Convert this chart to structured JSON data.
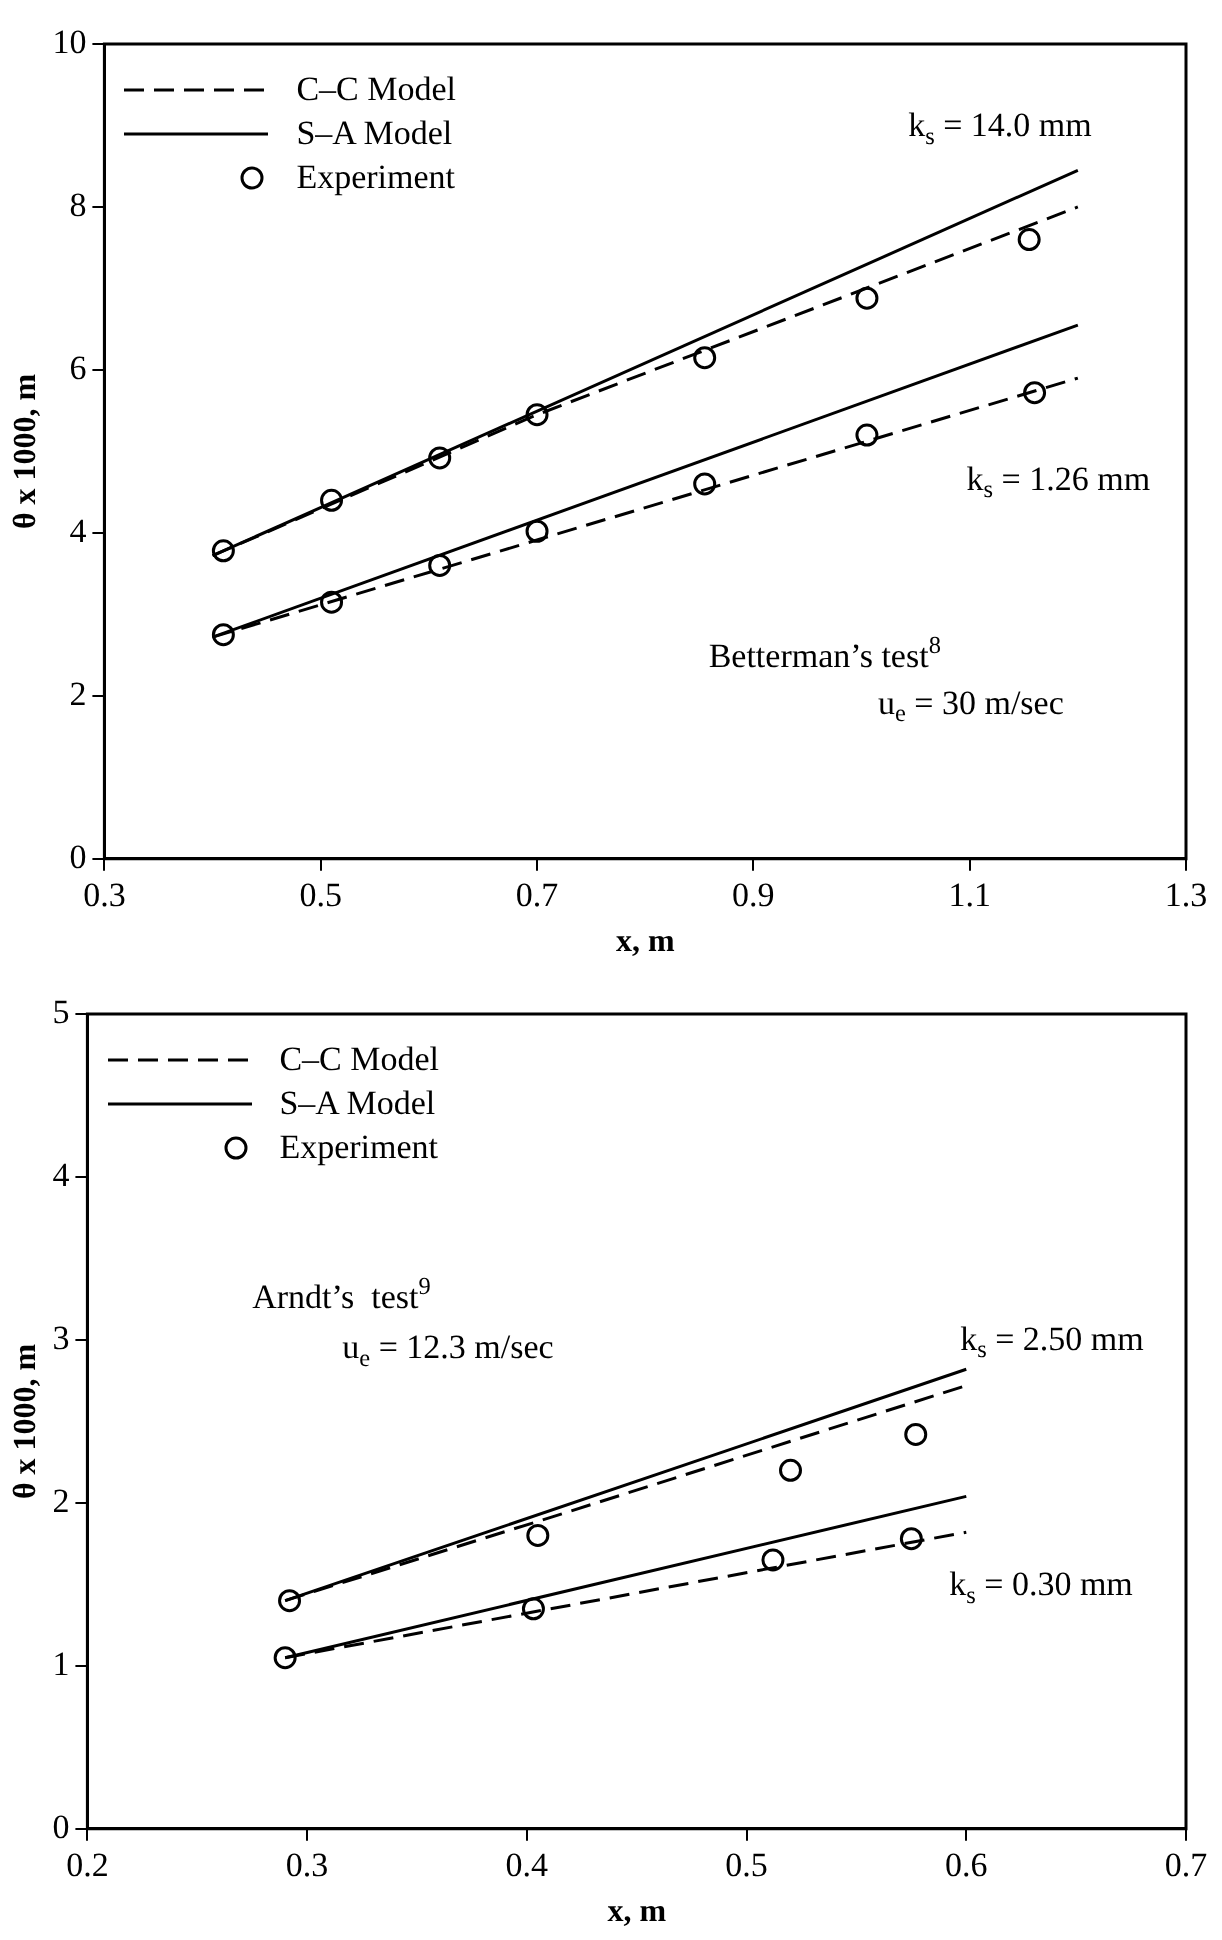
{
  "chart_data": [
    {
      "type": "line",
      "xlabel": "x, m",
      "ylabel": "θ x 1000, m",
      "xlim": [
        0.3,
        1.3
      ],
      "xticks": [
        0.3,
        0.5,
        0.7,
        0.9,
        1.1,
        1.3
      ],
      "ylim": [
        0,
        10
      ],
      "yticks": [
        0,
        2,
        4,
        6,
        8,
        10
      ],
      "legend": "top left",
      "annotations": [
        "k$_{s}$ = 14.0 mm",
        "k$_{s}$ = 1.26 mm",
        "Betterman’s test$^{8}$",
        "u$_{e}$ = 30 m/sec"
      ],
      "series": [
        {
          "name": "C–C Model",
          "type": "line",
          "line_style": "dashed",
          "marker": "none",
          "color": "#000000",
          "x": [
            0.4,
            0.7,
            1.2
          ],
          "values": [
            3.72,
            5.45,
            8.0
          ]
        },
        {
          "name": "S–A Model",
          "type": "line",
          "line_style": "solid",
          "marker": "none",
          "color": "#000000",
          "x": [
            0.4,
            1.2
          ],
          "values": [
            3.72,
            8.45
          ]
        },
        {
          "name": "Experiment",
          "type": "scatter",
          "marker": "circle",
          "color": "#000000",
          "x": [
            0.41,
            0.51,
            0.61,
            0.7,
            0.855,
            1.005,
            1.155
          ],
          "values": [
            3.78,
            4.4,
            4.92,
            5.45,
            6.15,
            6.88,
            7.6
          ]
        },
        {
          "type": "line",
          "line_style": "dashed",
          "marker": "none",
          "color": "#000000",
          "x": [
            0.4,
            1.2
          ],
          "values": [
            2.72,
            5.9
          ]
        },
        {
          "type": "line",
          "line_style": "solid",
          "marker": "none",
          "color": "#000000",
          "x": [
            0.4,
            1.2
          ],
          "values": [
            2.72,
            6.55
          ]
        },
        {
          "type": "scatter",
          "marker": "circle",
          "color": "#000000",
          "x": [
            0.41,
            0.51,
            0.61,
            0.7,
            0.855,
            1.005,
            1.16
          ],
          "values": [
            2.75,
            3.15,
            3.6,
            4.02,
            4.6,
            5.2,
            5.72
          ]
        }
      ]
    },
    {
      "type": "line",
      "xlabel": "x, m",
      "ylabel": "θ x 1000, m",
      "xlim": [
        0.2,
        0.7
      ],
      "xticks": [
        0.2,
        0.3,
        0.4,
        0.5,
        0.6,
        0.7
      ],
      "ylim": [
        0,
        5
      ],
      "yticks": [
        0,
        1,
        2,
        3,
        4,
        5
      ],
      "legend": "top left",
      "annotations": [
        "k$_{s}$ = 2.50 mm",
        "k$_{s}$ = 0.30 mm",
        "Arndt’s  test$^{9}$",
        "u$_{e}$ = 12.3 m/sec"
      ],
      "series": [
        {
          "name": "C–C Model",
          "type": "line",
          "line_style": "dashed",
          "marker": "none",
          "color": "#000000",
          "x": [
            0.29,
            0.42,
            0.6
          ],
          "values": [
            1.4,
            1.95,
            2.72
          ]
        },
        {
          "name": "S–A Model",
          "type": "line",
          "line_style": "solid",
          "marker": "none",
          "color": "#000000",
          "x": [
            0.29,
            0.6
          ],
          "values": [
            1.4,
            2.82
          ]
        },
        {
          "name": "Experiment",
          "type": "scatter",
          "marker": "circle",
          "color": "#000000",
          "x": [
            0.292,
            0.405,
            0.52,
            0.577
          ],
          "values": [
            1.4,
            1.8,
            2.2,
            2.42
          ]
        },
        {
          "type": "line",
          "line_style": "dashed",
          "marker": "none",
          "color": "#000000",
          "x": [
            0.29,
            0.6
          ],
          "values": [
            1.05,
            1.82
          ]
        },
        {
          "type": "line",
          "line_style": "solid",
          "marker": "none",
          "color": "#000000",
          "x": [
            0.29,
            0.6
          ],
          "values": [
            1.05,
            2.04
          ]
        },
        {
          "type": "scatter",
          "marker": "circle",
          "color": "#000000",
          "x": [
            0.29,
            0.403,
            0.512,
            0.575
          ],
          "values": [
            1.05,
            1.35,
            1.65,
            1.78
          ]
        }
      ]
    }
  ]
}
